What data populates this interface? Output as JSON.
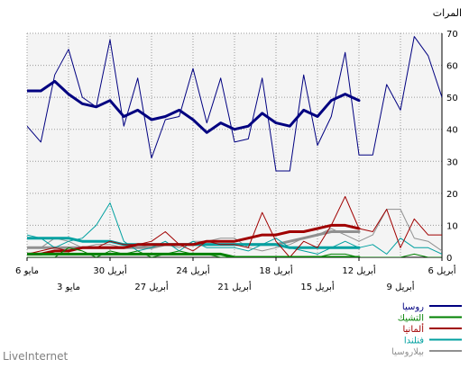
{
  "chart_data": {
    "type": "line",
    "ylabel": "المرات",
    "ylim": [
      0,
      70
    ],
    "y_ticks": [
      0,
      10,
      20,
      30,
      40,
      50,
      60,
      70
    ],
    "grid": true,
    "x_axis_reversed": true,
    "x_ticks_row1": [
      {
        "day": 0,
        "label": "6 أبريل"
      },
      {
        "day": 6,
        "label": "12 أبريل"
      },
      {
        "day": 12,
        "label": "18 أبريل"
      },
      {
        "day": 18,
        "label": "24 أبريل"
      },
      {
        "day": 24,
        "label": "30 أبريل"
      },
      {
        "day": 30,
        "label": "6 مايو"
      }
    ],
    "x_ticks_row2": [
      {
        "day": 3,
        "label": "9 أبريل"
      },
      {
        "day": 9,
        "label": "15 أبريل"
      },
      {
        "day": 15,
        "label": "21 أبريل"
      },
      {
        "day": 21,
        "label": "27 أبريل"
      },
      {
        "day": 27,
        "label": "3 مايو"
      }
    ],
    "x_days": [
      0,
      1,
      2,
      3,
      4,
      5,
      6,
      7,
      8,
      9,
      10,
      11,
      12,
      13,
      14,
      15,
      16,
      17,
      18,
      19,
      20,
      21,
      22,
      23,
      24,
      25,
      26,
      27,
      28,
      29,
      30
    ],
    "series": [
      {
        "name": "روسيا",
        "color": "#000080",
        "values": [
          50,
          63,
          69,
          46,
          54,
          32,
          32,
          64,
          44,
          35,
          57,
          27,
          27,
          56,
          37,
          36,
          56,
          42,
          59,
          44,
          43,
          31,
          56,
          41,
          68,
          47,
          50,
          65,
          57,
          36,
          41
        ],
        "trend": [
          null,
          null,
          null,
          null,
          null,
          null,
          49,
          51,
          49,
          44,
          46,
          41,
          42,
          45,
          41,
          40,
          42,
          39,
          43,
          46,
          44,
          43,
          46,
          44,
          49,
          47,
          48,
          51,
          55,
          52,
          52
        ]
      },
      {
        "name": "التشيك",
        "color": "#008000",
        "values": [
          0,
          0,
          1,
          0,
          0,
          0,
          0,
          1,
          1,
          0,
          0,
          0,
          0,
          0,
          0,
          0,
          0,
          1,
          1,
          2,
          1,
          0,
          2,
          1,
          2,
          0,
          2,
          3,
          0,
          0,
          0
        ],
        "trend": [
          null,
          null,
          null,
          null,
          null,
          null,
          0,
          0,
          0,
          0,
          0,
          0,
          0,
          0,
          0,
          0,
          1,
          1,
          1,
          1,
          1,
          1,
          1,
          1,
          1,
          1,
          1,
          1,
          1,
          1,
          1
        ]
      },
      {
        "name": "ألمانيا",
        "color": "#a00000",
        "values": [
          7,
          7,
          12,
          3,
          15,
          8,
          9,
          19,
          10,
          3,
          5,
          0,
          5,
          14,
          3,
          4,
          4,
          5,
          2,
          4,
          8,
          5,
          4,
          4,
          5,
          3,
          3,
          2,
          3,
          2,
          1
        ],
        "trend": [
          null,
          null,
          null,
          null,
          null,
          null,
          9,
          10,
          10,
          9,
          8,
          8,
          7,
          7,
          6,
          5,
          5,
          5,
          4,
          4,
          4,
          4,
          4,
          3,
          3,
          3,
          3,
          2,
          2,
          1,
          1
        ]
      },
      {
        "name": "فنلندا",
        "color": "#00a0a0",
        "values": [
          1,
          3,
          3,
          6,
          1,
          4,
          3,
          5,
          3,
          1,
          2,
          3,
          6,
          4,
          2,
          3,
          3,
          3,
          5,
          2,
          5,
          3,
          2,
          5,
          17,
          10,
          6,
          5,
          3,
          6,
          7
        ],
        "trend": [
          null,
          null,
          null,
          null,
          null,
          null,
          3,
          3,
          3,
          3,
          3,
          3,
          4,
          4,
          4,
          4,
          4,
          4,
          4,
          4,
          4,
          4,
          4,
          4,
          5,
          5,
          5,
          6,
          6,
          6,
          6
        ]
      },
      {
        "name": "بيلاروسيا",
        "color": "#909090",
        "values": [
          2,
          5,
          6,
          15,
          15,
          7,
          5,
          7,
          9,
          7,
          6,
          4,
          3,
          2,
          3,
          6,
          6,
          5,
          5,
          3,
          4,
          4,
          3,
          3,
          4,
          4,
          3,
          5,
          6,
          3,
          3
        ],
        "trend": [
          null,
          null,
          null,
          null,
          null,
          null,
          8,
          8,
          8,
          7,
          6,
          5,
          4,
          4,
          4,
          4,
          4,
          4,
          4,
          4,
          4,
          3,
          3,
          3,
          3,
          3,
          3,
          3,
          3,
          3,
          3
        ]
      }
    ]
  },
  "footer": {
    "brand": "LiveInternet"
  }
}
